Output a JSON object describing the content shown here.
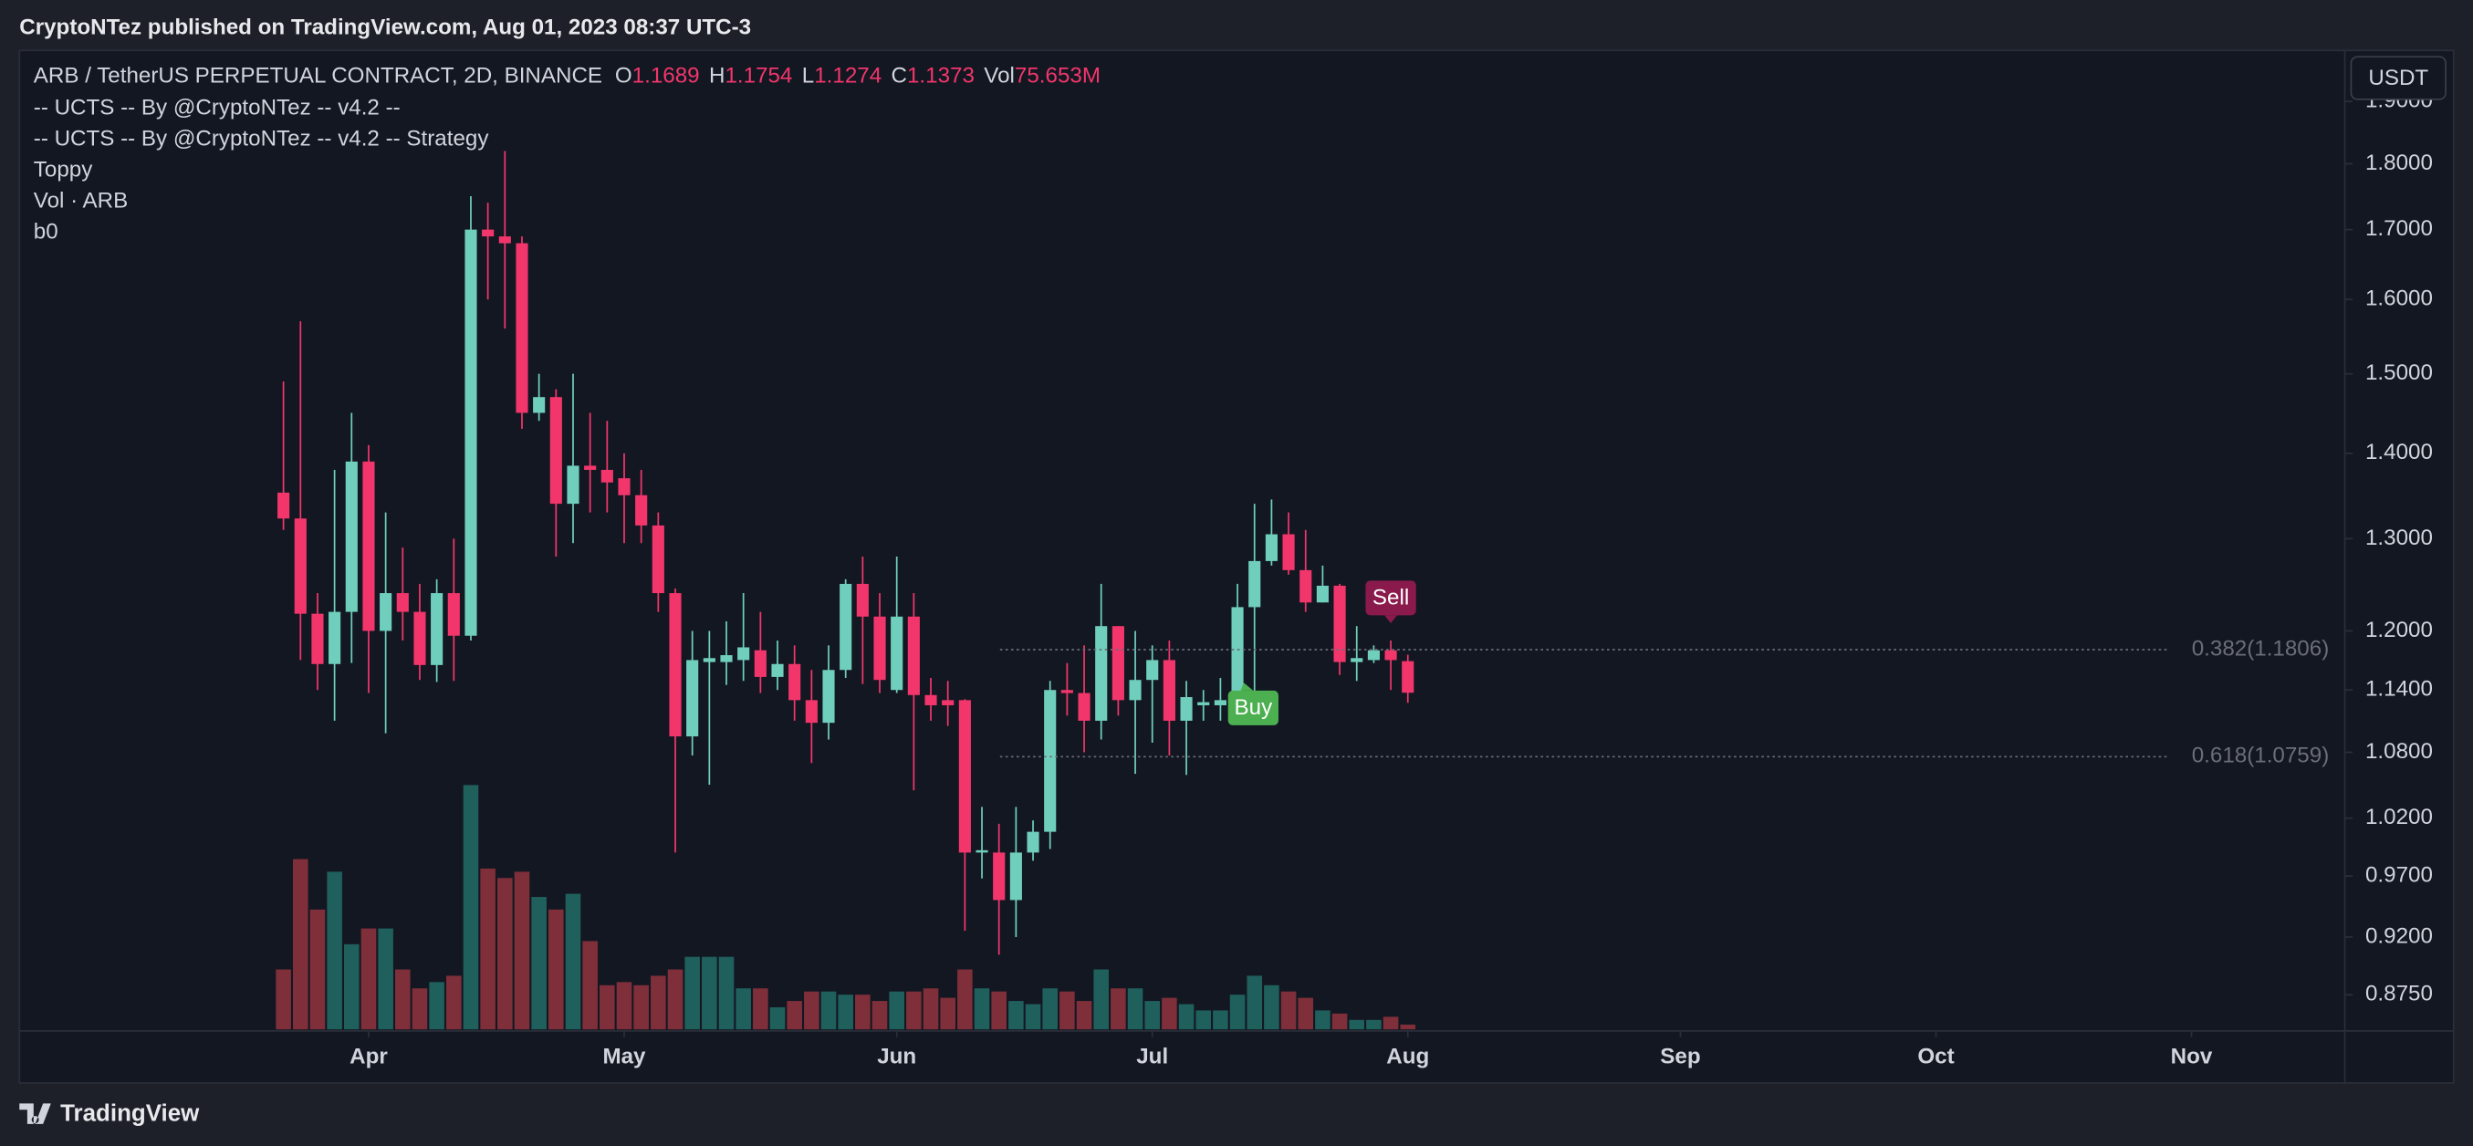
{
  "header": {
    "text": "CryptoNTez published on TradingView.com, Aug 01, 2023 08:37 UTC-3"
  },
  "chart_data": {
    "type": "candlestick",
    "title": "ARB / TetherUS PERPETUAL CONTRACT, 2D, BINANCE",
    "legend_fields": [
      {
        "key": "O",
        "value": "1.1689"
      },
      {
        "key": "H",
        "value": "1.1754"
      },
      {
        "key": "L",
        "value": "1.1274"
      },
      {
        "key": "C",
        "value": "1.1373"
      },
      {
        "key": "Vol",
        "value": "75.653M"
      }
    ],
    "indicators": [
      "-- UCTS -- By @CryptoNTez -- v4.2 --",
      "-- UCTS -- By @CryptoNTez -- v4.2 -- Strategy",
      "Toppy",
      "Vol · ARB",
      "b0"
    ],
    "currency": "USDT",
    "open": [
      1.353,
      1.323,
      1.218,
      1.166,
      1.22,
      1.39,
      1.2,
      1.24,
      1.22,
      1.165,
      1.24,
      1.195,
      1.7,
      1.69,
      1.68,
      1.45,
      1.47,
      1.34,
      1.385,
      1.38,
      1.37,
      1.35,
      1.315,
      1.24,
      1.095,
      1.168,
      1.168,
      1.17,
      1.18,
      1.153,
      1.166,
      1.13,
      1.108,
      1.16,
      1.25,
      1.215,
      1.14,
      1.215,
      1.135,
      1.13,
      1.13,
      0.99,
      0.99,
      0.95,
      0.99,
      1.008,
      1.14,
      1.137,
      1.11,
      1.205,
      1.13,
      1.15,
      1.17,
      1.11,
      1.125,
      1.125,
      1.13,
      1.225,
      1.275,
      1.305,
      1.265,
      1.23,
      1.248,
      1.168,
      1.17,
      1.18,
      1.1689
    ],
    "high": [
      1.49,
      1.57,
      1.24,
      1.38,
      1.45,
      1.41,
      1.33,
      1.29,
      1.25,
      1.255,
      1.3,
      1.75,
      1.74,
      1.82,
      1.69,
      1.5,
      1.48,
      1.5,
      1.45,
      1.44,
      1.4,
      1.38,
      1.33,
      1.245,
      1.2,
      1.2,
      1.21,
      1.24,
      1.22,
      1.19,
      1.185,
      1.16,
      1.185,
      1.255,
      1.28,
      1.24,
      1.28,
      1.24,
      1.152,
      1.149,
      1.131,
      1.03,
      1.015,
      1.03,
      1.018,
      1.149,
      1.167,
      1.185,
      1.25,
      1.205,
      1.2,
      1.185,
      1.19,
      1.149,
      1.14,
      1.152,
      1.25,
      1.34,
      1.345,
      1.33,
      1.31,
      1.27,
      1.25,
      1.205,
      1.185,
      1.19,
      1.1754
    ],
    "low": [
      1.31,
      1.17,
      1.14,
      1.11,
      1.167,
      1.137,
      1.098,
      1.19,
      1.15,
      1.148,
      1.149,
      1.19,
      1.6,
      1.56,
      1.43,
      1.44,
      1.28,
      1.295,
      1.33,
      1.33,
      1.295,
      1.295,
      1.22,
      0.99,
      1.077,
      1.05,
      1.145,
      1.149,
      1.137,
      1.14,
      1.11,
      1.07,
      1.092,
      1.152,
      1.146,
      1.137,
      1.137,
      1.045,
      1.11,
      1.105,
      0.925,
      0.968,
      0.906,
      0.92,
      0.983,
      0.993,
      1.115,
      1.08,
      1.092,
      1.115,
      1.06,
      1.089,
      1.077,
      1.059,
      1.11,
      1.11,
      1.127,
      1.137,
      1.27,
      1.26,
      1.22,
      1.23,
      1.155,
      1.149,
      1.167,
      1.14,
      1.1274
    ],
    "close": [
      1.323,
      1.218,
      1.166,
      1.22,
      1.39,
      1.2,
      1.24,
      1.22,
      1.165,
      1.24,
      1.195,
      1.7,
      1.69,
      1.68,
      1.45,
      1.47,
      1.34,
      1.385,
      1.38,
      1.365,
      1.35,
      1.315,
      1.24,
      1.095,
      1.17,
      1.172,
      1.175,
      1.183,
      1.153,
      1.166,
      1.13,
      1.108,
      1.16,
      1.25,
      1.215,
      1.15,
      1.215,
      1.135,
      1.125,
      1.125,
      0.99,
      0.992,
      0.95,
      0.99,
      1.008,
      1.14,
      1.137,
      1.11,
      1.205,
      1.13,
      1.15,
      1.17,
      1.11,
      1.133,
      1.128,
      1.13,
      1.225,
      1.275,
      1.305,
      1.265,
      1.23,
      1.248,
      1.168,
      1.172,
      1.18,
      1.17,
      1.1373
    ],
    "volume": [
      950,
      2700,
      1900,
      2500,
      1350,
      1600,
      1600,
      950,
      650,
      750,
      850,
      3875,
      2550,
      2400,
      2500,
      2100,
      1900,
      2150,
      1400,
      700,
      750,
      700,
      850,
      950,
      1150,
      1150,
      1150,
      650,
      650,
      350,
      450,
      600,
      600,
      550,
      550,
      450,
      600,
      600,
      650,
      500,
      950,
      650,
      600,
      450,
      400,
      650,
      600,
      450,
      950,
      650,
      650,
      450,
      500,
      400,
      300,
      300,
      550,
      850,
      700,
      600,
      500,
      300,
      250,
      150,
      150,
      200,
      75.653
    ],
    "up_color": "#6fcfbc",
    "down_color": "#f2366b",
    "volume_up_color": "#1f5f5c",
    "volume_down_color": "#7e2f39",
    "log_scale": true,
    "ylim": [
      0.848,
      1.986
    ],
    "yticks": [
      {
        "value": 0.875,
        "label": "0.8750"
      },
      {
        "value": 0.92,
        "label": "0.9200"
      },
      {
        "value": 0.97,
        "label": "0.9700"
      },
      {
        "value": 1.02,
        "label": "1.0200"
      },
      {
        "value": 1.08,
        "label": "1.0800"
      },
      {
        "value": 1.14,
        "label": "1.1400"
      },
      {
        "value": 1.2,
        "label": "1.2000"
      },
      {
        "value": 1.3,
        "label": "1.3000"
      },
      {
        "value": 1.4,
        "label": "1.4000"
      },
      {
        "value": 1.5,
        "label": "1.5000"
      },
      {
        "value": 1.6,
        "label": "1.6000"
      },
      {
        "value": 1.7,
        "label": "1.7000"
      },
      {
        "value": 1.8,
        "label": "1.8000"
      },
      {
        "value": 1.9,
        "label": "1.9000"
      }
    ],
    "xlim": [
      -15.5,
      121
    ],
    "xticks": [
      {
        "value": 5,
        "label": "Apr"
      },
      {
        "value": 20,
        "label": "May"
      },
      {
        "value": 36,
        "label": "Jun"
      },
      {
        "value": 51,
        "label": "Jul"
      },
      {
        "value": 66,
        "label": "Aug"
      },
      {
        "value": 82,
        "label": "Sep"
      },
      {
        "value": 97,
        "label": "Oct"
      },
      {
        "value": 112,
        "label": "Nov"
      }
    ],
    "levels": [
      {
        "value": 1.1806,
        "label": "0.382(1.1806)"
      },
      {
        "value": 1.0759,
        "label": "0.618(1.0759)"
      }
    ],
    "signals": [
      {
        "label": "Buy",
        "candle": 56,
        "color": "#4caf50"
      },
      {
        "label": "Sell",
        "candle": 65,
        "color": "#8a1a4c"
      }
    ]
  },
  "footer": {
    "brand": "TradingView"
  }
}
